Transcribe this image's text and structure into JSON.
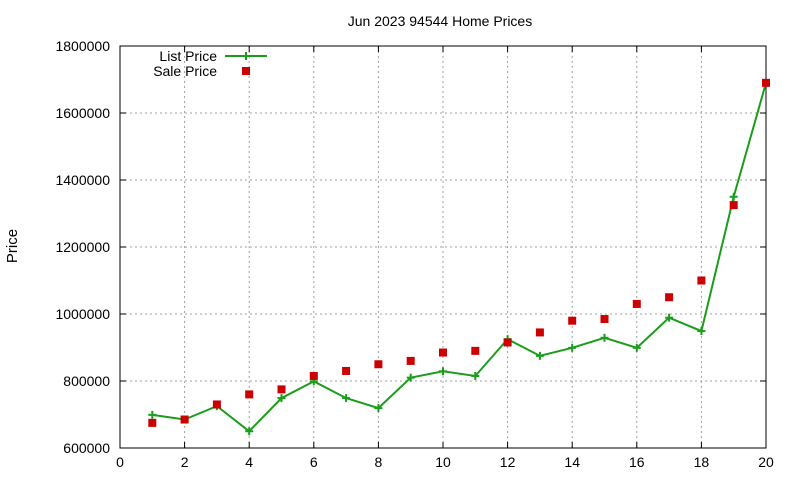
{
  "chart_data": {
    "type": "line",
    "title": "Jun 2023 94544 Home Prices",
    "xlabel": "",
    "ylabel": "Price",
    "xlim": [
      0,
      20
    ],
    "ylim": [
      600000,
      1800000
    ],
    "xticks": [
      "0",
      "2",
      "4",
      "6",
      "8",
      "10",
      "12",
      "14",
      "16",
      "18",
      "20"
    ],
    "yticks": [
      "600000",
      "800000",
      "1000000",
      "1200000",
      "1400000",
      "1600000",
      "1800000"
    ],
    "grid": true,
    "legend_position": "top-left",
    "series": [
      {
        "name": "List Price",
        "style": "line-with-plus-markers",
        "color": "#1a9e1a",
        "x": [
          1,
          2,
          3,
          4,
          5,
          6,
          7,
          8,
          9,
          10,
          11,
          12,
          13,
          14,
          15,
          16,
          17,
          18,
          19,
          20
        ],
        "y": [
          699000,
          685000,
          725000,
          650000,
          749000,
          799000,
          749000,
          719000,
          810000,
          829000,
          815000,
          925000,
          875000,
          899000,
          929000,
          899000,
          989000,
          949000,
          1350000,
          1690000
        ]
      },
      {
        "name": "Sale Price",
        "style": "square-markers",
        "color": "#cc0000",
        "x": [
          1,
          2,
          3,
          4,
          5,
          6,
          7,
          8,
          9,
          10,
          11,
          12,
          13,
          14,
          15,
          16,
          17,
          18,
          19,
          20
        ],
        "y": [
          675000,
          685000,
          730000,
          760000,
          775000,
          815000,
          830000,
          850000,
          860000,
          885000,
          890000,
          915000,
          945000,
          980000,
          985000,
          1030000,
          1050000,
          1100000,
          1325000,
          1690000
        ]
      }
    ]
  }
}
